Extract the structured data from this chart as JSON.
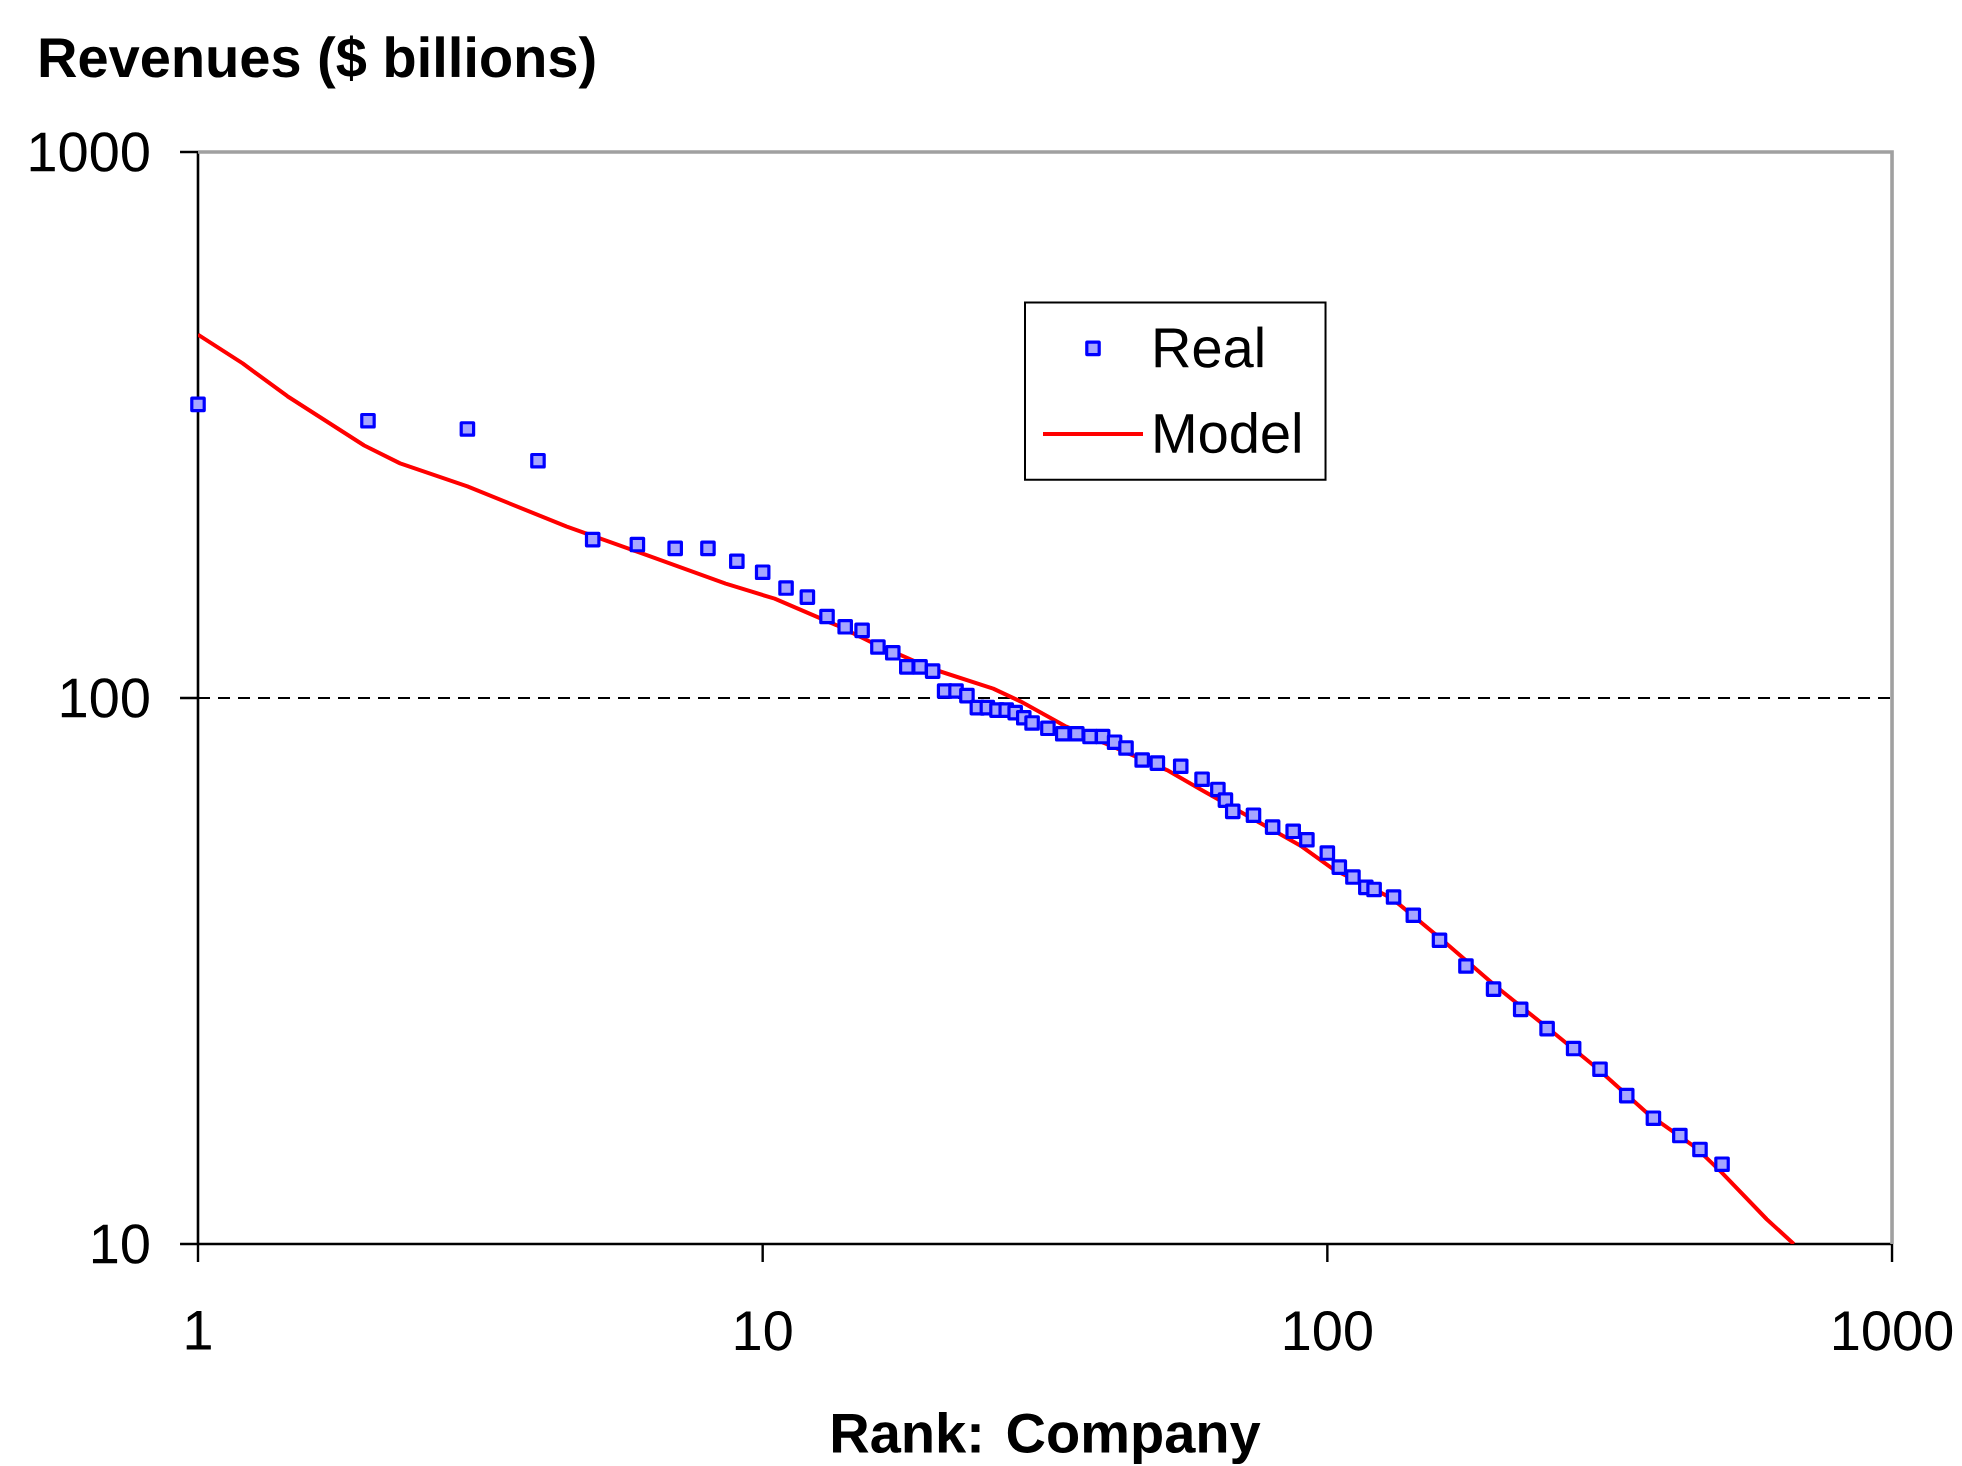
{
  "chart_data": {
    "type": "scatter",
    "ylabel": "Revenues ($ billions)",
    "xlabel": "Rank: Company",
    "log": "xy",
    "xlim": [
      1,
      1000
    ],
    "ylim": [
      10,
      1000
    ],
    "xticks": [
      1,
      10,
      100,
      1000
    ],
    "yticks": [
      10,
      100,
      1000
    ],
    "grid": "y",
    "legend": "top",
    "series": [
      {
        "name": "Real",
        "color": "#0000ff",
        "marker": "square",
        "x": [
          1,
          2,
          3,
          4,
          5,
          6,
          7,
          8,
          9,
          10,
          11,
          12,
          13,
          14,
          15,
          16,
          17,
          18,
          19,
          20,
          21,
          22,
          23,
          24,
          25,
          26,
          27,
          28,
          29,
          30,
          32,
          34,
          36,
          38,
          40,
          42,
          44,
          47,
          50,
          55,
          60,
          64,
          66,
          68,
          74,
          80,
          87,
          92,
          100,
          105,
          111,
          117,
          121,
          131,
          142,
          158,
          176,
          197,
          220,
          245,
          273,
          304,
          339,
          378,
          421,
          457,
          500
        ],
        "values": [
          345,
          322,
          311,
          272,
          195,
          191,
          188,
          188,
          178,
          170,
          159,
          153,
          141,
          135,
          133,
          124,
          121,
          114,
          114,
          112,
          103,
          103,
          101,
          96,
          96,
          95,
          95,
          94,
          92,
          90,
          88,
          86,
          86,
          85,
          85,
          83,
          81,
          77,
          76,
          75,
          71,
          68,
          65,
          62,
          61,
          58,
          57,
          55,
          52,
          49,
          47,
          45,
          44.6,
          43.2,
          40,
          36,
          32.3,
          29.3,
          26.9,
          24.8,
          22.8,
          20.9,
          18.7,
          17,
          15.8,
          14.9,
          14
        ]
      },
      {
        "name": "Model",
        "type": "line",
        "color": "#ff0000",
        "marker": "none",
        "line_style": "solid",
        "x": [
          1,
          1.2,
          1.44,
          1.97,
          2.28,
          3,
          4.5,
          6.2,
          8.6,
          10.5,
          13.5,
          15.7,
          20,
          25.6,
          28.6,
          34.5,
          52,
          60,
          90,
          103,
          130,
          160,
          200,
          250,
          300,
          370,
          450,
          500,
          600,
          670
        ],
        "values": [
          463,
          410,
          357,
          290,
          269,
          244,
          206,
          183,
          162,
          152,
          136,
          126,
          113,
          104,
          98.6,
          88.6,
          73.8,
          67.8,
          53.5,
          48.4,
          43,
          36,
          29.5,
          24.5,
          21,
          17.3,
          15,
          13.5,
          11.1,
          10
        ]
      }
    ]
  }
}
